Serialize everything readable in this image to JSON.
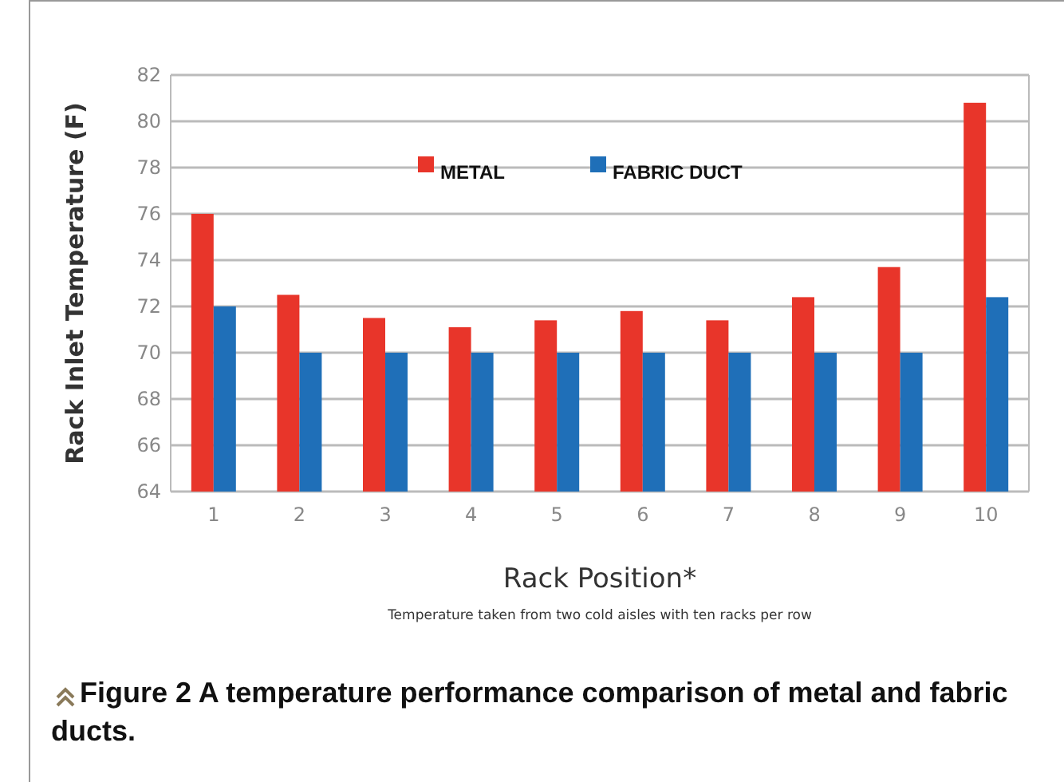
{
  "chart_data": {
    "type": "bar",
    "title": "Figure 2 A temperature performance comparison of metal and fabric ducts.",
    "xlabel": "Rack Position*",
    "ylabel": "Rack Inlet Temperature (F)",
    "annotations": [
      "Temperature taken from two cold aisles with ten racks per row"
    ],
    "categories": [
      "1",
      "2",
      "3",
      "4",
      "5",
      "6",
      "7",
      "8",
      "9",
      "10"
    ],
    "series": [
      {
        "name": "METAL",
        "color": "#e8352a",
        "values": [
          76,
          72.5,
          71.5,
          71.1,
          71.4,
          71.8,
          71.4,
          72.4,
          73.7,
          80.8
        ]
      },
      {
        "name": "FABRIC DUCT",
        "color": "#1f6fb8",
        "values": [
          72,
          70,
          70,
          70,
          70,
          70,
          70,
          70,
          70,
          72.4
        ]
      }
    ],
    "ylim": [
      64,
      82
    ],
    "yticks": [
      64,
      66,
      68,
      70,
      72,
      74,
      76,
      78,
      80,
      82
    ],
    "grid": "y",
    "legend": "top"
  }
}
